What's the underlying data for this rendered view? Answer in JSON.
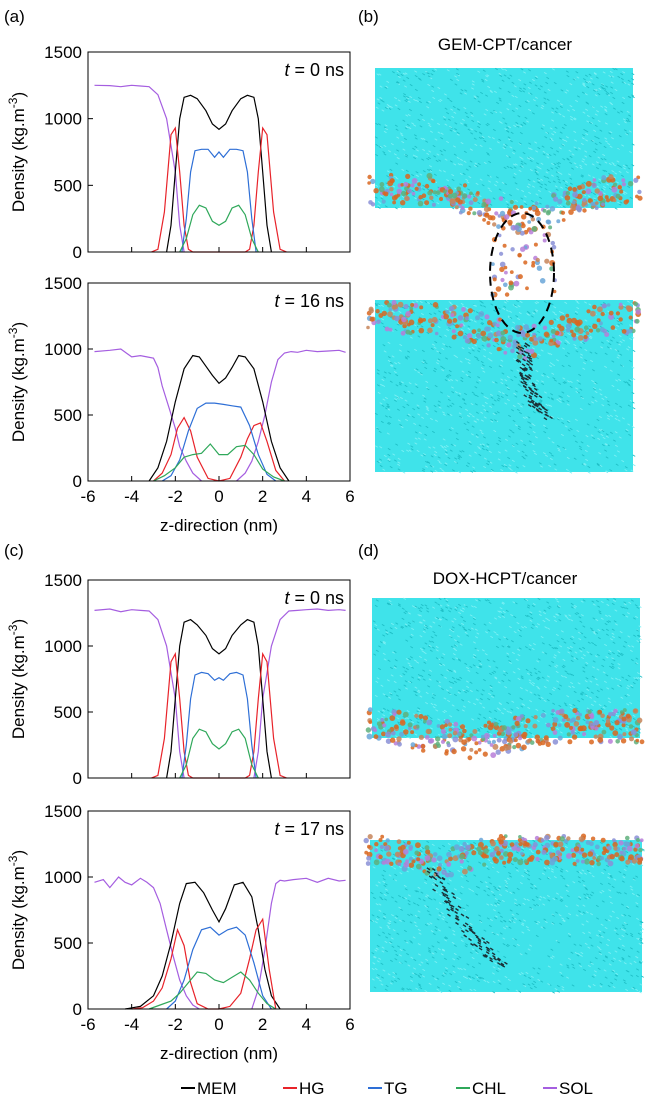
{
  "panel_labels": {
    "a": "(a)",
    "b": "(b)",
    "c": "(c)",
    "d": "(d)"
  },
  "snapshot_titles": {
    "b": "GEM-CPT/cancer",
    "d": "DOX-HCPT/cancer"
  },
  "colors": {
    "MEM": "#000000",
    "HG": "#e8232a",
    "TG": "#2e6fd6",
    "CHL": "#2fa85a",
    "SOL": "#a55ee0",
    "water": "#3fe3ea",
    "orange": "#d9661f"
  },
  "legend": [
    {
      "key": "MEM",
      "label": "MEM"
    },
    {
      "key": "HG",
      "label": "HG"
    },
    {
      "key": "TG",
      "label": "TG"
    },
    {
      "key": "CHL",
      "label": "CHL"
    },
    {
      "key": "SOL",
      "label": "SOL"
    }
  ],
  "chart_data": [
    {
      "id": "a-top",
      "type": "line",
      "time_prefix": "t",
      "time_suffix": "= 0 ns",
      "ylabel": "Density (kg.m-3)",
      "xlabel": "",
      "xlim": [
        -6,
        6
      ],
      "ylim": [
        0,
        1500
      ],
      "yticks": [
        0,
        500,
        1000,
        1500
      ],
      "xticks": [
        -6,
        -4,
        -2,
        0,
        2,
        4,
        6
      ],
      "show_xtick_labels": false,
      "series": [
        {
          "name": "SOL",
          "x": [
            -5.7,
            -5,
            -4.5,
            -4,
            -3.6,
            -3.2,
            -2.8,
            -2.4,
            -2.0,
            -1.8,
            -1.6
          ],
          "y": [
            1250,
            1248,
            1240,
            1250,
            1245,
            1240,
            1180,
            1000,
            600,
            200,
            0
          ]
        },
        {
          "name": "MEM",
          "x": [
            -2.4,
            -2.2,
            -2,
            -1.8,
            -1.6,
            -1.3,
            -1,
            -0.6,
            -0.3,
            0,
            0.3,
            0.6,
            1,
            1.3,
            1.6,
            1.8,
            2,
            2.2,
            2.4
          ],
          "y": [
            0,
            200,
            600,
            1000,
            1160,
            1175,
            1150,
            1060,
            960,
            920,
            960,
            1060,
            1150,
            1175,
            1160,
            1000,
            600,
            200,
            0
          ]
        },
        {
          "name": "HG",
          "x": [
            -3.1,
            -2.8,
            -2.5,
            -2.2,
            -2.0,
            -1.8,
            -1.6,
            -1.4,
            -1.2,
            1.2,
            1.4,
            1.6,
            1.8,
            2.0,
            2.2,
            2.5,
            2.8,
            3.1
          ],
          "y": [
            0,
            20,
            300,
            880,
            930,
            600,
            200,
            20,
            0,
            0,
            20,
            200,
            600,
            930,
            880,
            300,
            20,
            0
          ]
        },
        {
          "name": "TG",
          "x": [
            -1.7,
            -1.5,
            -1.3,
            -1.1,
            -0.8,
            -0.5,
            -0.2,
            0,
            0.2,
            0.5,
            0.8,
            1.1,
            1.3,
            1.5,
            1.7
          ],
          "y": [
            0,
            250,
            600,
            760,
            770,
            770,
            710,
            750,
            710,
            770,
            770,
            760,
            600,
            250,
            0
          ]
        },
        {
          "name": "CHL",
          "x": [
            -1.8,
            -1.5,
            -1.2,
            -0.9,
            -0.6,
            -0.3,
            0,
            0.3,
            0.6,
            0.9,
            1.2,
            1.5,
            1.8
          ],
          "y": [
            0,
            100,
            280,
            350,
            330,
            230,
            200,
            230,
            330,
            350,
            280,
            100,
            0
          ]
        }
      ]
    },
    {
      "id": "a-bottom",
      "type": "line",
      "time_prefix": "t",
      "time_suffix": "= 16 ns",
      "ylabel": "Density (kg.m-3)",
      "xlabel": "z-direction (nm)",
      "xlim": [
        -6,
        6
      ],
      "ylim": [
        0,
        1500
      ],
      "yticks": [
        0,
        500,
        1000,
        1500
      ],
      "xticks": [
        -6,
        -4,
        -2,
        0,
        2,
        4,
        6
      ],
      "show_xtick_labels": true,
      "series": [
        {
          "name": "SOL",
          "x": [
            -5.7,
            -5,
            -4.5,
            -4,
            -3.6,
            -3.3,
            -3.0,
            -2.8,
            -2.6,
            -2.3,
            -2.0,
            -1.8,
            -1.5,
            -1.2,
            -0.8
          ],
          "y": [
            980,
            990,
            1000,
            940,
            950,
            940,
            930,
            860,
            720,
            560,
            400,
            260,
            150,
            60,
            0
          ]
        },
        {
          "name": "SOL",
          "x": [
            0.8,
            1.2,
            1.5,
            1.8,
            2.1,
            2.4,
            2.7,
            3.0,
            3.3,
            3.6,
            4,
            4.5,
            5,
            5.5,
            5.8
          ],
          "y": [
            0,
            60,
            150,
            300,
            500,
            750,
            920,
            970,
            980,
            975,
            990,
            980,
            985,
            990,
            975
          ]
        },
        {
          "name": "MEM",
          "x": [
            -3.2,
            -2.8,
            -2.4,
            -2,
            -1.6,
            -1.2,
            -0.9,
            -0.6,
            -0.3,
            0,
            0.3,
            0.6,
            0.9,
            1.2,
            1.6,
            2,
            2.4,
            2.8,
            3.2
          ],
          "y": [
            0,
            100,
            300,
            600,
            850,
            950,
            940,
            870,
            800,
            740,
            780,
            860,
            950,
            940,
            850,
            600,
            300,
            100,
            0
          ]
        },
        {
          "name": "HG",
          "x": [
            -3.0,
            -2.6,
            -2.2,
            -1.9,
            -1.6,
            -1.3,
            -1,
            -0.5,
            0,
            0.5,
            1,
            1.3,
            1.6,
            1.9,
            2.2,
            2.6,
            3.0
          ],
          "y": [
            0,
            60,
            200,
            400,
            480,
            380,
            180,
            20,
            0,
            20,
            180,
            320,
            420,
            440,
            300,
            80,
            0
          ]
        },
        {
          "name": "TG",
          "x": [
            -2.6,
            -2.2,
            -1.8,
            -1.4,
            -1,
            -0.6,
            -0.2,
            0.2,
            0.6,
            1,
            1.4,
            1.8,
            2.2,
            2.6
          ],
          "y": [
            0,
            40,
            160,
            380,
            550,
            590,
            590,
            580,
            570,
            560,
            420,
            200,
            50,
            0
          ]
        },
        {
          "name": "CHL",
          "x": [
            -3.0,
            -2.5,
            -2.0,
            -1.6,
            -1.2,
            -0.8,
            -0.4,
            0,
            0.4,
            0.8,
            1.2,
            1.6,
            2.0,
            2.5,
            3.0
          ],
          "y": [
            0,
            40,
            100,
            180,
            200,
            210,
            280,
            200,
            200,
            260,
            270,
            200,
            90,
            30,
            0
          ]
        }
      ]
    },
    {
      "id": "c-top",
      "type": "line",
      "time_prefix": "t",
      "time_suffix": "= 0 ns",
      "ylabel": "Density (kg.m-3)",
      "xlabel": "",
      "xlim": [
        -6,
        6
      ],
      "ylim": [
        0,
        1500
      ],
      "yticks": [
        0,
        500,
        1000,
        1500
      ],
      "xticks": [
        -6,
        -4,
        -2,
        0,
        2,
        4,
        6
      ],
      "show_xtick_labels": false,
      "series": [
        {
          "name": "SOL",
          "x": [
            -5.7,
            -5,
            -4.5,
            -4,
            -3.6,
            -3.2,
            -2.8,
            -2.4,
            -2.0,
            -1.8,
            -1.6
          ],
          "y": [
            1270,
            1280,
            1260,
            1275,
            1270,
            1265,
            1200,
            1000,
            600,
            200,
            0
          ]
        },
        {
          "name": "SOL",
          "x": [
            1.6,
            1.8,
            2.0,
            2.4,
            2.8,
            3.2,
            3.6,
            4,
            4.5,
            5,
            5.5,
            5.8
          ],
          "y": [
            0,
            200,
            600,
            1000,
            1200,
            1265,
            1270,
            1275,
            1280,
            1270,
            1275,
            1270
          ]
        },
        {
          "name": "MEM",
          "x": [
            -2.4,
            -2.2,
            -2,
            -1.8,
            -1.6,
            -1.3,
            -1,
            -0.6,
            -0.3,
            0,
            0.3,
            0.6,
            1,
            1.3,
            1.6,
            1.8,
            2,
            2.2,
            2.4
          ],
          "y": [
            0,
            200,
            600,
            1000,
            1180,
            1200,
            1160,
            1080,
            980,
            940,
            980,
            1080,
            1160,
            1200,
            1180,
            1000,
            600,
            200,
            0
          ]
        },
        {
          "name": "HG",
          "x": [
            -3.1,
            -2.8,
            -2.5,
            -2.2,
            -2.0,
            -1.8,
            -1.6,
            -1.4,
            -1.2,
            1.2,
            1.4,
            1.6,
            1.8,
            2.0,
            2.2,
            2.5,
            2.8,
            3.1
          ],
          "y": [
            0,
            20,
            300,
            880,
            940,
            600,
            200,
            20,
            0,
            0,
            20,
            200,
            600,
            940,
            880,
            300,
            20,
            0
          ]
        },
        {
          "name": "TG",
          "x": [
            -1.7,
            -1.5,
            -1.3,
            -1.1,
            -0.8,
            -0.5,
            -0.2,
            0,
            0.2,
            0.5,
            0.8,
            1.1,
            1.3,
            1.5,
            1.7
          ],
          "y": [
            0,
            250,
            600,
            780,
            800,
            790,
            740,
            760,
            740,
            790,
            800,
            780,
            600,
            250,
            0
          ]
        },
        {
          "name": "CHL",
          "x": [
            -1.8,
            -1.5,
            -1.2,
            -0.9,
            -0.6,
            -0.3,
            0,
            0.3,
            0.6,
            0.9,
            1.2,
            1.5,
            1.8
          ],
          "y": [
            0,
            100,
            300,
            370,
            350,
            260,
            220,
            260,
            350,
            370,
            300,
            100,
            0
          ]
        }
      ]
    },
    {
      "id": "c-bottom",
      "type": "line",
      "time_prefix": "t",
      "time_suffix": "= 17 ns",
      "ylabel": "Density (kg.m-3)",
      "xlabel": "z-direction (nm)",
      "xlim": [
        -6,
        6
      ],
      "ylim": [
        0,
        1500
      ],
      "yticks": [
        0,
        500,
        1000,
        1500
      ],
      "xticks": [
        -6,
        -4,
        -2,
        0,
        2,
        4,
        6
      ],
      "show_xtick_labels": true,
      "series": [
        {
          "name": "SOL",
          "x": [
            -5.7,
            -5.3,
            -5,
            -4.6,
            -4.3,
            -4,
            -3.6,
            -3.3,
            -3,
            -2.7,
            -2.4,
            -2.1,
            -1.8,
            -1.5,
            -1.2,
            -0.9
          ],
          "y": [
            960,
            980,
            920,
            1000,
            960,
            940,
            990,
            960,
            920,
            800,
            600,
            400,
            220,
            100,
            30,
            0
          ]
        },
        {
          "name": "SOL",
          "x": [
            1.5,
            1.8,
            2.1,
            2.4,
            2.6,
            2.8,
            3,
            3.4,
            4,
            4.5,
            5,
            5.5,
            5.8
          ],
          "y": [
            0,
            150,
            450,
            800,
            950,
            975,
            970,
            980,
            990,
            960,
            990,
            970,
            975
          ]
        },
        {
          "name": "MEM",
          "x": [
            -4.3,
            -3.6,
            -3,
            -2.6,
            -2.2,
            -1.8,
            -1.5,
            -1.1,
            -0.7,
            -0.3,
            0,
            0.3,
            0.7,
            1.1,
            1.5,
            1.8,
            2.1,
            2.4,
            2.8
          ],
          "y": [
            0,
            20,
            100,
            250,
            500,
            800,
            950,
            960,
            880,
            750,
            660,
            760,
            940,
            960,
            850,
            600,
            300,
            100,
            0
          ]
        },
        {
          "name": "HG",
          "x": [
            -4.0,
            -3.5,
            -3,
            -2.6,
            -2.2,
            -1.9,
            -1.6,
            -1.3,
            -1,
            -0.5,
            0,
            0.5,
            1,
            1.4,
            1.7,
            2.0,
            2.3,
            2.6
          ],
          "y": [
            0,
            10,
            60,
            160,
            380,
            600,
            480,
            200,
            40,
            0,
            0,
            20,
            120,
            380,
            600,
            680,
            300,
            0
          ]
        },
        {
          "name": "TG",
          "x": [
            -2.4,
            -2,
            -1.6,
            -1.2,
            -0.8,
            -0.4,
            0,
            0.4,
            0.8,
            1.2,
            1.6,
            2,
            2.4
          ],
          "y": [
            0,
            60,
            220,
            450,
            600,
            620,
            560,
            600,
            620,
            560,
            350,
            100,
            0
          ]
        },
        {
          "name": "CHL",
          "x": [
            -3.2,
            -2.7,
            -2.2,
            -1.8,
            -1.4,
            -1,
            -0.6,
            -0.2,
            0.2,
            0.6,
            1,
            1.4,
            1.8,
            2.2,
            2.6
          ],
          "y": [
            0,
            30,
            60,
            120,
            200,
            280,
            270,
            220,
            200,
            240,
            280,
            220,
            120,
            40,
            0
          ]
        }
      ]
    }
  ]
}
